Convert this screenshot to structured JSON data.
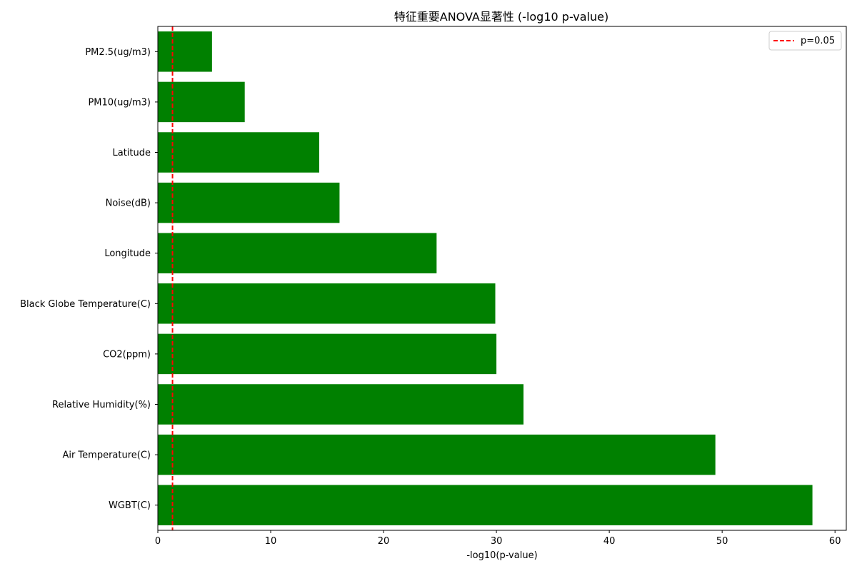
{
  "chart_data": {
    "type": "bar",
    "orientation": "horizontal",
    "title": "特征重要ANOVA显著性 (-log10 p-value)",
    "xlabel": "-log10(p-value)",
    "ylabel": "",
    "categories": [
      "WGBT(C)",
      "Air Temperature(C)",
      "Relative Humidity(%)",
      "CO2(ppm)",
      "Black Globe Temperature(C)",
      "Longitude",
      "Noise(dB)",
      "Latitude",
      "PM10(ug/m3)",
      "PM2.5(ug/m3)"
    ],
    "values": [
      58.0,
      49.4,
      32.4,
      30.0,
      29.9,
      24.7,
      16.1,
      14.3,
      7.7,
      4.8
    ],
    "xlim": [
      0,
      61
    ],
    "xticks": [
      0,
      10,
      20,
      30,
      40,
      50,
      60
    ],
    "bar_color": "#008000",
    "reference_line": {
      "x": 1.301,
      "label": "p=0.05",
      "color": "#ff0000",
      "style": "dashed"
    },
    "legend": {
      "position": "top-right",
      "entries": [
        "p=0.05"
      ]
    },
    "grid": false
  }
}
